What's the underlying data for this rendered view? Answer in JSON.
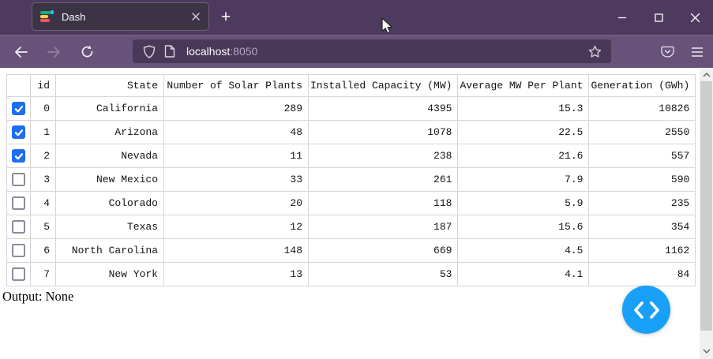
{
  "browser": {
    "tab_title": "Dash",
    "new_tab_label": "+",
    "url_host": "localhost",
    "url_port": ":8050"
  },
  "table": {
    "columns": [
      "",
      "id",
      "State",
      "Number of Solar Plants",
      "Installed Capacity (MW)",
      "Average MW Per Plant",
      "Generation (GWh)"
    ],
    "rows": [
      {
        "selected": true,
        "cells": [
          "0",
          "California",
          "289",
          "4395",
          "15.3",
          "10826"
        ]
      },
      {
        "selected": true,
        "cells": [
          "1",
          "Arizona",
          "48",
          "1078",
          "22.5",
          "2550"
        ]
      },
      {
        "selected": true,
        "cells": [
          "2",
          "Nevada",
          "11",
          "238",
          "21.6",
          "557"
        ]
      },
      {
        "selected": false,
        "cells": [
          "3",
          "New Mexico",
          "33",
          "261",
          "7.9",
          "590"
        ]
      },
      {
        "selected": false,
        "cells": [
          "4",
          "Colorado",
          "20",
          "118",
          "5.9",
          "235"
        ]
      },
      {
        "selected": false,
        "cells": [
          "5",
          "Texas",
          "12",
          "187",
          "15.6",
          "354"
        ]
      },
      {
        "selected": false,
        "cells": [
          "6",
          "North Carolina",
          "148",
          "669",
          "4.5",
          "1162"
        ]
      },
      {
        "selected": false,
        "cells": [
          "7",
          "New York",
          "13",
          "53",
          "4.1",
          "84"
        ]
      }
    ]
  },
  "output_text": "Output: None",
  "colors": {
    "debug_button_blue": "#18a0f8",
    "checkbox_blue": "#1c6ef2",
    "titlebar_purple": "#4e3a5e",
    "toolbar_purple": "#67527a",
    "urlbar_purple": "#493857",
    "table_border": "#d6d6d6"
  }
}
